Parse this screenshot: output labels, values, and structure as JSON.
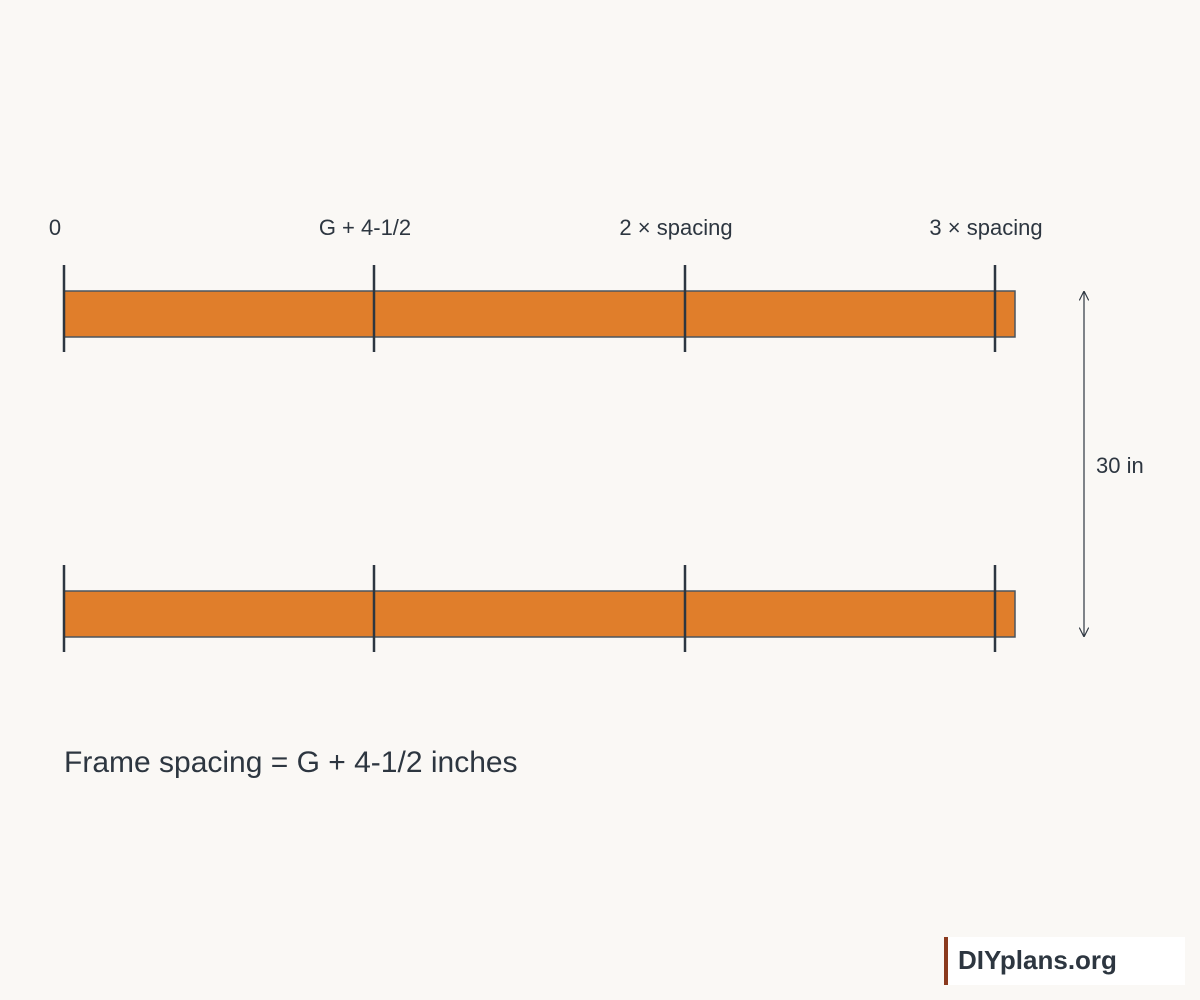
{
  "position_labels": [
    "0",
    "G + 4-1/2",
    "2 × spacing",
    "3 × spacing"
  ],
  "dimension_label": "30 in",
  "caption": "Frame spacing = G + 4-1/2 inches",
  "brand": "DIYplans.org"
}
